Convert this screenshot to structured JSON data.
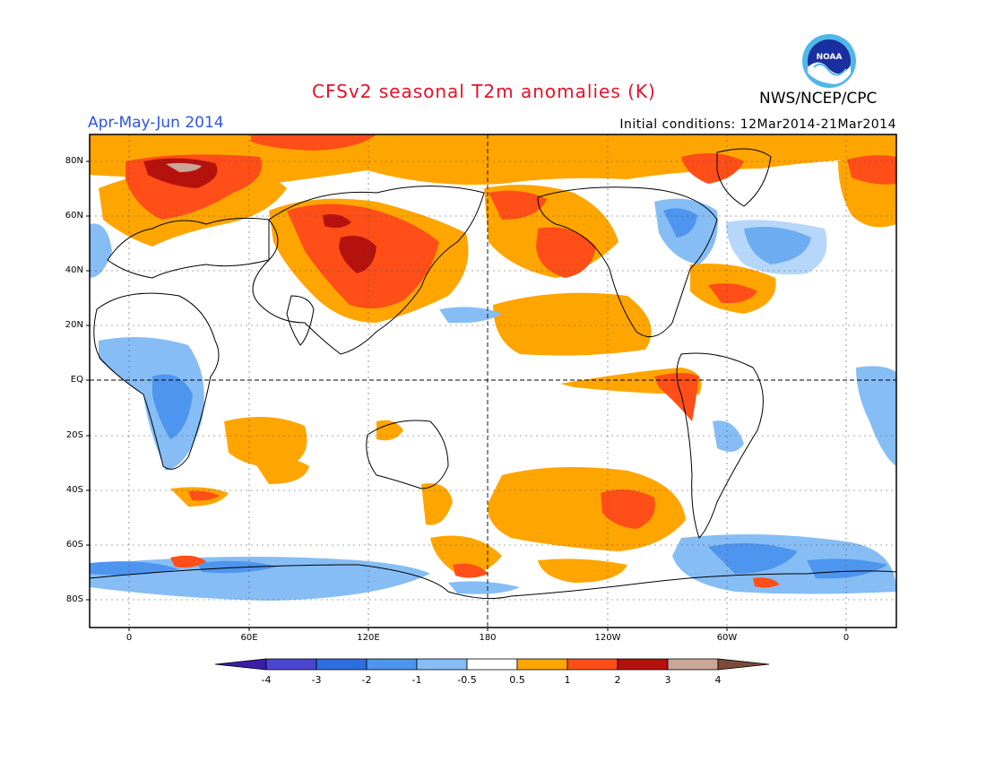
{
  "header": {
    "title": "CFSv2 seasonal T2m anomalies (K)",
    "season": "Apr-May-Jun 2014",
    "organization": "NWS/NCEP/CPC",
    "initial_conditions": "Initial conditions: 12Mar2014-21Mar2014",
    "logo_text": "NOAA"
  },
  "map": {
    "lat_labels": [
      "80N",
      "60N",
      "40N",
      "20N",
      "EQ",
      "20S",
      "40S",
      "60S",
      "80S"
    ],
    "lon_labels": [
      "0",
      "60E",
      "120E",
      "180",
      "120W",
      "60W",
      "0"
    ],
    "lon_range": [
      -20,
      385
    ],
    "lat_range": [
      -90,
      90
    ]
  },
  "colorbar": {
    "labels": [
      "-4",
      "-3",
      "-2",
      "-1",
      "-0.5",
      "0.5",
      "1",
      "2",
      "3",
      "4"
    ],
    "colors": [
      "#3a1fa8",
      "#4b46d0",
      "#2d6ee0",
      "#4d95ee",
      "#86bdf5",
      "#ffffff",
      "#ffa500",
      "#ff4e18",
      "#b5120e",
      "#c9a696",
      "#7b4a3a"
    ]
  },
  "colors": {
    "ocean_default": "#ffffff",
    "warm_1": "#ffa500",
    "warm_2": "#ff4e18",
    "warm_3": "#b5120e",
    "warm_4": "#c9a696",
    "cool_1": "#86bdf5",
    "cool_2": "#4d95ee",
    "cool_3": "#2d6ee0",
    "title": "#e8102a",
    "season": "#2e55e6"
  }
}
